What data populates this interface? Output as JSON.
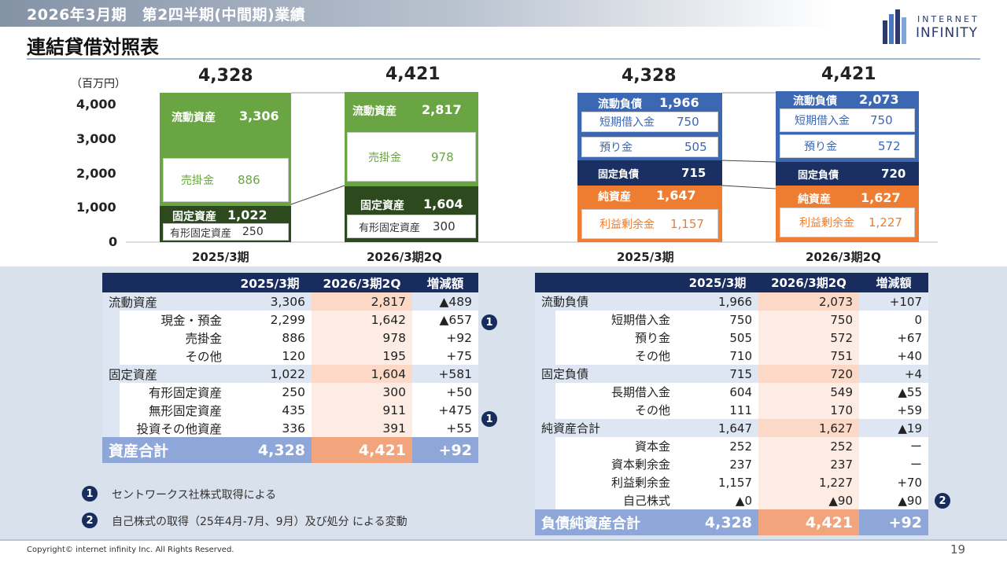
{
  "header": {
    "title": "2026年3月期　第2四半期(中間期)業績",
    "page_title": "連結貸借対照表",
    "logo_line1": "INTERNET",
    "logo_line2": "INFINITY"
  },
  "chart": {
    "unit": "（百万円）",
    "y_ticks": [
      "4,000",
      "3,000",
      "2,000",
      "1,000",
      "0"
    ],
    "assets": [
      {
        "period": "2025/3期",
        "total": "4,328",
        "current_label": "流動資産",
        "current_value": "3,306",
        "receivable_label": "売掛金",
        "receivable_value": "886",
        "fixed_label": "固定資産",
        "fixed_value": "1,022",
        "tangible_label": "有形固定資産",
        "tangible_value": "250"
      },
      {
        "period": "2026/3期2Q",
        "total": "4,421",
        "current_label": "流動資産",
        "current_value": "2,817",
        "receivable_label": "売掛金",
        "receivable_value": "978",
        "fixed_label": "固定資産",
        "fixed_value": "1,604",
        "tangible_label": "有形固定資産",
        "tangible_value": "300"
      }
    ],
    "liabilities": [
      {
        "period": "2025/3期",
        "total": "4,328",
        "current_label": "流動負債",
        "current_value": "1,966",
        "stb_label": "短期借入金",
        "stb_value": "750",
        "dep_label": "預り金",
        "dep_value": "505",
        "fixed_label": "固定負債",
        "fixed_value": "715",
        "net_label": "純資産",
        "net_value": "1,647",
        "re_label": "利益剰余金",
        "re_value": "1,157"
      },
      {
        "period": "2026/3期2Q",
        "total": "4,421",
        "current_label": "流動負債",
        "current_value": "2,073",
        "stb_label": "短期借入金",
        "stb_value": "750",
        "dep_label": "預り金",
        "dep_value": "572",
        "fixed_label": "固定負債",
        "fixed_value": "720",
        "net_label": "純資産",
        "net_value": "1,627",
        "re_label": "利益剰余金",
        "re_value": "1,227"
      }
    ],
    "colors": {
      "green": "#6aa544",
      "dark_green": "#2d4a1e",
      "blue": "#3c67b3",
      "navy": "#1b3062",
      "orange": "#ef7d31"
    }
  },
  "assets_table": {
    "headers": [
      "",
      "2025/3期",
      "2026/3期2Q",
      "増減額"
    ],
    "rows": [
      {
        "type": "cat",
        "label": "流動資産",
        "v1": "3,306",
        "v2": "2,817",
        "v3": "▲489"
      },
      {
        "type": "sub",
        "label": "現金・預金",
        "v1": "2,299",
        "v2": "1,642",
        "v3": "▲657"
      },
      {
        "type": "sub",
        "label": "売掛金",
        "v1": "886",
        "v2": "978",
        "v3": "+92"
      },
      {
        "type": "sub",
        "label": "その他",
        "v1": "120",
        "v2": "195",
        "v3": "+75"
      },
      {
        "type": "cat",
        "label": "固定資産",
        "v1": "1,022",
        "v2": "1,604",
        "v3": "+581"
      },
      {
        "type": "sub",
        "label": "有形固定資産",
        "v1": "250",
        "v2": "300",
        "v3": "+50"
      },
      {
        "type": "sub",
        "label": "無形固定資産",
        "v1": "435",
        "v2": "911",
        "v3": "+475"
      },
      {
        "type": "sub",
        "label": "投資その他資産",
        "v1": "336",
        "v2": "391",
        "v3": "+55"
      },
      {
        "type": "tot",
        "label": "資産合計",
        "v1": "4,328",
        "v2": "4,421",
        "v3": "+92"
      }
    ]
  },
  "liabilities_table": {
    "headers": [
      "",
      "2025/3期",
      "2026/3期2Q",
      "増減額"
    ],
    "rows": [
      {
        "type": "cat",
        "label": "流動負債",
        "v1": "1,966",
        "v2": "2,073",
        "v3": "+107"
      },
      {
        "type": "sub",
        "label": "短期借入金",
        "v1": "750",
        "v2": "750",
        "v3": "0"
      },
      {
        "type": "sub",
        "label": "預り金",
        "v1": "505",
        "v2": "572",
        "v3": "+67"
      },
      {
        "type": "sub",
        "label": "その他",
        "v1": "710",
        "v2": "751",
        "v3": "+40"
      },
      {
        "type": "cat",
        "label": "固定負債",
        "v1": "715",
        "v2": "720",
        "v3": "+4"
      },
      {
        "type": "sub",
        "label": "長期借入金",
        "v1": "604",
        "v2": "549",
        "v3": "▲55"
      },
      {
        "type": "sub",
        "label": "その他",
        "v1": "111",
        "v2": "170",
        "v3": "+59"
      },
      {
        "type": "cat",
        "label": "純資産合計",
        "v1": "1,647",
        "v2": "1,627",
        "v3": "▲19"
      },
      {
        "type": "sub",
        "label": "資本金",
        "v1": "252",
        "v2": "252",
        "v3": "ー"
      },
      {
        "type": "sub",
        "label": "資本剰余金",
        "v1": "237",
        "v2": "237",
        "v3": "ー"
      },
      {
        "type": "sub",
        "label": "利益剰余金",
        "v1": "1,157",
        "v2": "1,227",
        "v3": "+70"
      },
      {
        "type": "sub",
        "label": "自己株式",
        "v1": "▲0",
        "v2": "▲90",
        "v3": "▲90"
      },
      {
        "type": "tot",
        "label": "負債純資産合計",
        "v1": "4,328",
        "v2": "4,421",
        "v3": "+92"
      }
    ]
  },
  "markers": {
    "one": "1",
    "two": "2"
  },
  "notes": [
    {
      "marker": "1",
      "text": "セントワークス社株式取得による"
    },
    {
      "marker": "2",
      "text": "自己株式の取得（25年4月-7月、9月）及び処分 による変動"
    }
  ],
  "footer": {
    "copyright": "Copyright© internet infinity Inc. All Rights Reserved.",
    "page_number": "19"
  }
}
